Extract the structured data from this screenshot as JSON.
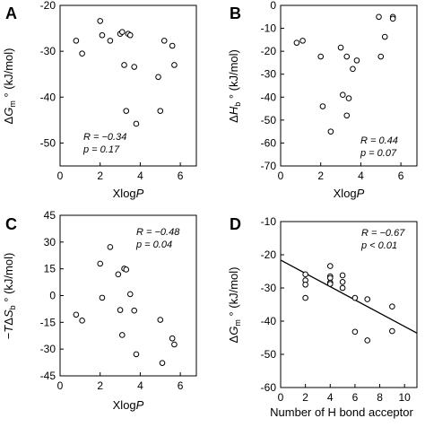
{
  "chart_data": [
    {
      "type": "scatter",
      "panel": "A",
      "xlabel": "XlogP",
      "ylabel": "ΔGm° (kJ/mol)",
      "xlim": [
        0,
        6.8
      ],
      "ylim": [
        -55,
        -20
      ],
      "xticks": [
        "0",
        "2",
        "4",
        "6"
      ],
      "yticks": [
        "-20",
        "-30",
        "-40",
        "-50"
      ],
      "stat_r": "R = −0.34",
      "stat_p": "p = 0.17",
      "x": [
        0.8,
        1.1,
        2.0,
        2.1,
        2.5,
        3.0,
        3.1,
        3.2,
        3.3,
        3.4,
        3.5,
        3.7,
        3.8,
        4.9,
        5.0,
        5.2,
        5.6,
        5.7
      ],
      "y": [
        -27.7,
        -30.5,
        -23.4,
        -26.5,
        -27.7,
        -26.2,
        -25.8,
        -33.0,
        -43.0,
        -26.2,
        -26.5,
        -33.4,
        -45.8,
        -35.6,
        -43.0,
        -27.7,
        -28.8,
        -33.0
      ]
    },
    {
      "type": "scatter",
      "panel": "B",
      "xlabel": "XlogP",
      "ylabel": "ΔHb° (kJ/mol)",
      "xlim": [
        0,
        6.8
      ],
      "ylim": [
        -70,
        0
      ],
      "xticks": [
        "0",
        "2",
        "4",
        "6"
      ],
      "yticks": [
        "0",
        "-10",
        "-20",
        "-30",
        "-40",
        "-50",
        "-60",
        "-70"
      ],
      "stat_r": "R = 0.44",
      "stat_p": "p = 0.07",
      "x": [
        0.8,
        1.1,
        2.0,
        2.1,
        2.5,
        3.0,
        3.1,
        3.3,
        3.3,
        3.4,
        3.6,
        3.8,
        4.9,
        5.0,
        5.2,
        5.6,
        5.6
      ],
      "y": [
        -16.3,
        -15.4,
        -22.3,
        -44.0,
        -55.0,
        -18.4,
        -39.0,
        -22.3,
        -48.0,
        -40.5,
        -27.7,
        -24.0,
        -5.0,
        -22.3,
        -13.7,
        -5.0,
        -5.8
      ]
    },
    {
      "type": "scatter",
      "panel": "C",
      "xlabel": "XlogP",
      "ylabel": "−TΔSb° (kJ/mol)",
      "xlim": [
        0,
        6.8
      ],
      "ylim": [
        -45,
        45
      ],
      "xticks": [
        "0",
        "2",
        "4",
        "6"
      ],
      "yticks": [
        "45",
        "30",
        "15",
        "0",
        "-15",
        "-30",
        "-45"
      ],
      "stat_r": "R = −0.48",
      "stat_p": "p = 0.04",
      "x": [
        0.8,
        1.1,
        2.0,
        2.1,
        2.5,
        2.9,
        3.0,
        3.1,
        3.2,
        3.3,
        3.5,
        3.7,
        3.8,
        5.0,
        5.1,
        5.6,
        5.7
      ],
      "y": [
        -10.7,
        -14.0,
        17.9,
        -1.2,
        27.2,
        11.9,
        -8.1,
        -22.1,
        15.1,
        14.6,
        0.8,
        -8.4,
        -32.9,
        -13.6,
        -37.8,
        -24.0,
        -27.4
      ]
    },
    {
      "type": "scatter",
      "panel": "D",
      "xlabel": "Number of H bond acceptor",
      "ylabel": "ΔGm° (kJ/mol)",
      "xlim": [
        0,
        11
      ],
      "ylim": [
        -60,
        -10
      ],
      "xticks": [
        "0",
        "2",
        "4",
        "6",
        "8",
        "10"
      ],
      "yticks": [
        "-10",
        "-20",
        "-30",
        "-40",
        "-50",
        "-60"
      ],
      "stat_r": "R = −0.67",
      "stat_p": "p < 0.01",
      "x": [
        2,
        2,
        2,
        2,
        4,
        4,
        4,
        4,
        4,
        5,
        5,
        5,
        6,
        6,
        7,
        7,
        9,
        9
      ],
      "y": [
        -25.9,
        -27.7,
        -29.0,
        -33.0,
        -23.4,
        -26.5,
        -27.0,
        -28.4,
        -28.8,
        -26.2,
        -28.2,
        -30.0,
        -33.0,
        -43.2,
        -33.4,
        -45.8,
        -35.6,
        -43.0
      ],
      "fit_line": {
        "x": [
          0,
          11
        ],
        "y": [
          -21.6,
          -43.6
        ]
      }
    }
  ]
}
